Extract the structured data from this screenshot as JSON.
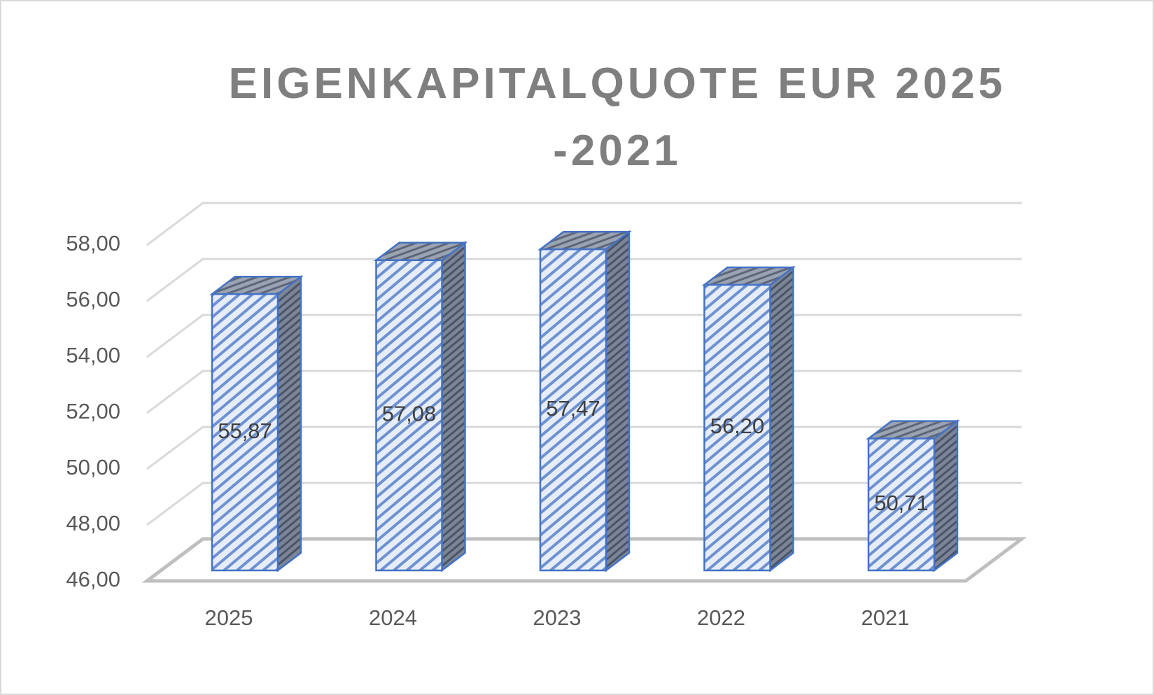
{
  "chart_data": {
    "type": "bar3d",
    "title": "EIGENKAPITALQUOTE EUR 2025 -2021",
    "categories": [
      "2025",
      "2024",
      "2023",
      "2022",
      "2021"
    ],
    "values": [
      55.87,
      57.08,
      57.47,
      56.2,
      50.71
    ],
    "value_labels": [
      "55,87",
      "57,08",
      "57,47",
      "56,20",
      "50,71"
    ],
    "color": "#4472c4",
    "ylim": [
      46,
      58
    ],
    "yticks": [
      {
        "value": 46,
        "label": "46,00"
      },
      {
        "value": 48,
        "label": "48,00"
      },
      {
        "value": 50,
        "label": "50,00"
      },
      {
        "value": 52,
        "label": "52,00"
      },
      {
        "value": 54,
        "label": "54,00"
      },
      {
        "value": 56,
        "label": "56,00"
      },
      {
        "value": 58,
        "label": "58,00"
      }
    ],
    "grid": true
  }
}
